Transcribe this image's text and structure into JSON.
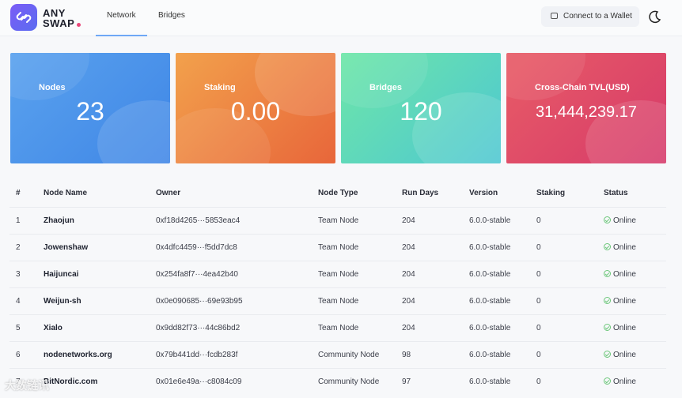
{
  "header": {
    "logo_text_line1": "ANY",
    "logo_text_line2": "SWAP",
    "tabs": [
      {
        "label": "Network"
      },
      {
        "label": "Bridges"
      }
    ],
    "wallet_label": "Connect to a Wallet"
  },
  "cards": [
    {
      "title": "Nodes",
      "value": "23"
    },
    {
      "title": "Staking",
      "value": "0.00"
    },
    {
      "title": "Bridges",
      "value": "120"
    },
    {
      "title": "Cross-Chain TVL(USD)",
      "value": "31,444,239.17"
    }
  ],
  "table": {
    "headers": [
      "#",
      "Node Name",
      "Owner",
      "Node Type",
      "Run Days",
      "Version",
      "Staking",
      "Status"
    ],
    "rows": [
      {
        "idx": "1",
        "name": "Zhaojun",
        "owner": "0xf18d4265···5853eac4",
        "type": "Team Node",
        "days": "204",
        "version": "6.0.0-stable",
        "staking": "0",
        "status": "Online"
      },
      {
        "idx": "2",
        "name": "Jowenshaw",
        "owner": "0x4dfc4459···f5dd7dc8",
        "type": "Team Node",
        "days": "204",
        "version": "6.0.0-stable",
        "staking": "0",
        "status": "Online"
      },
      {
        "idx": "3",
        "name": "Haijuncai",
        "owner": "0x254fa8f7···4ea42b40",
        "type": "Team Node",
        "days": "204",
        "version": "6.0.0-stable",
        "staking": "0",
        "status": "Online"
      },
      {
        "idx": "4",
        "name": "Weijun-sh",
        "owner": "0x0e090685···69e93b95",
        "type": "Team Node",
        "days": "204",
        "version": "6.0.0-stable",
        "staking": "0",
        "status": "Online"
      },
      {
        "idx": "5",
        "name": "Xialo",
        "owner": "0x9dd82f73···44c86bd2",
        "type": "Team Node",
        "days": "204",
        "version": "6.0.0-stable",
        "staking": "0",
        "status": "Online"
      },
      {
        "idx": "6",
        "name": "nodenetworks.org",
        "owner": "0x79b441dd···fcdb283f",
        "type": "Community Node",
        "days": "98",
        "version": "6.0.0-stable",
        "staking": "0",
        "status": "Online"
      },
      {
        "idx": "7",
        "name": "BitNordic.com",
        "owner": "0x01e6e49a···c8084c09",
        "type": "Community Node",
        "days": "97",
        "version": "6.0.0-stable",
        "staking": "0",
        "status": "Online"
      }
    ]
  },
  "watermark": "大数链讯",
  "colors": {
    "accent": "#6fa8f6",
    "online": "#6cc77a",
    "card_nodes": "#4a90e8",
    "card_staking": "#ee7c3c",
    "card_bridges": "#55d4c0",
    "card_tvl": "#e04a6a"
  }
}
